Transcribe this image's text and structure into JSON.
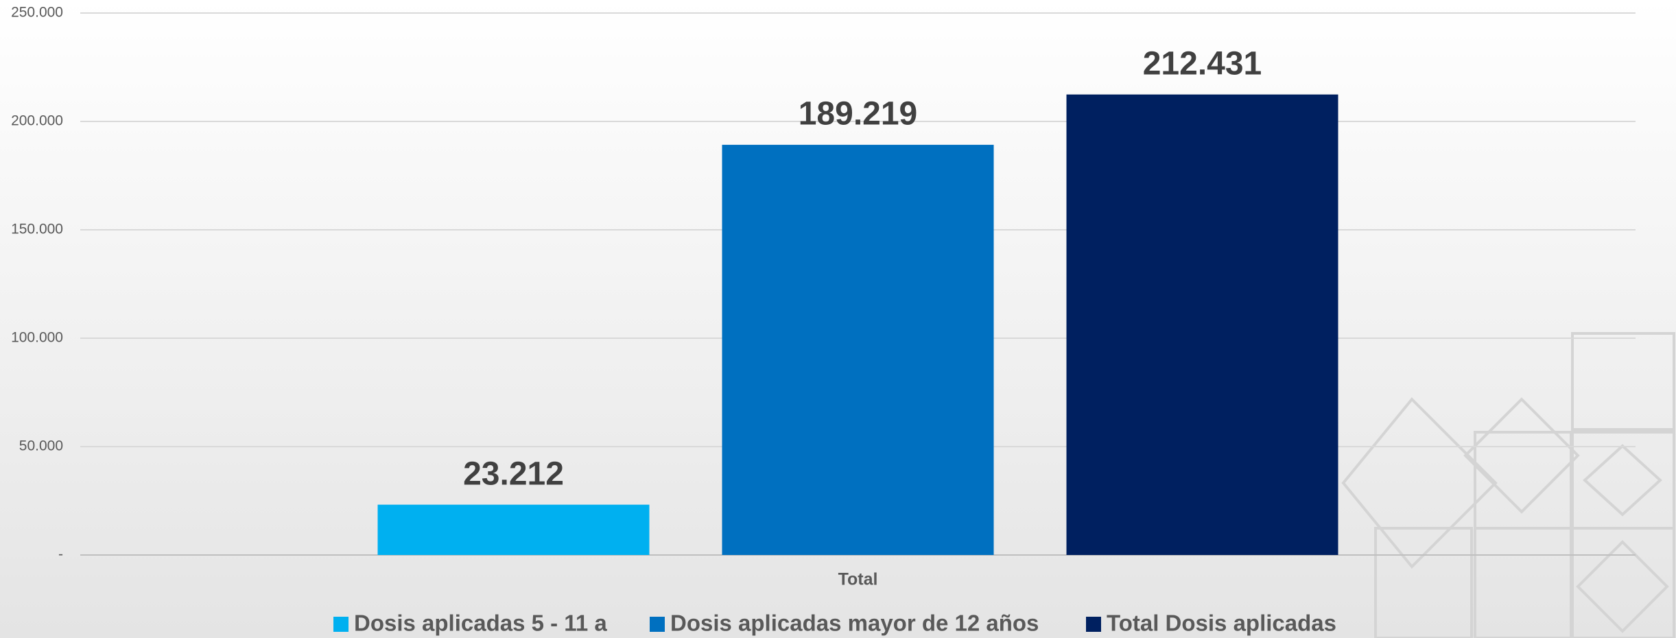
{
  "chart_data": {
    "type": "bar",
    "categories": [
      "Total"
    ],
    "series": [
      {
        "name": "Dosis aplicadas 5 - 11 a",
        "color": "#00b0f0",
        "values": [
          23212
        ],
        "value_labels": [
          "23.212"
        ]
      },
      {
        "name": "Dosis aplicadas mayor de 12 años",
        "color": "#0070c0",
        "values": [
          189219
        ],
        "value_labels": [
          "189.219"
        ]
      },
      {
        "name": "Total Dosis aplicadas",
        "color": "#002060",
        "values": [
          212431
        ],
        "value_labels": [
          "212.431"
        ]
      }
    ],
    "ylim": [
      0,
      250000
    ],
    "yticks": [
      {
        "value": 0,
        "label": "-"
      },
      {
        "value": 50000,
        "label": "50.000"
      },
      {
        "value": 100000,
        "label": "100.000"
      },
      {
        "value": 150000,
        "label": "150.000"
      },
      {
        "value": 200000,
        "label": "200.000"
      },
      {
        "value": 250000,
        "label": "250.000"
      }
    ],
    "grid": true,
    "legend": "bottom"
  }
}
